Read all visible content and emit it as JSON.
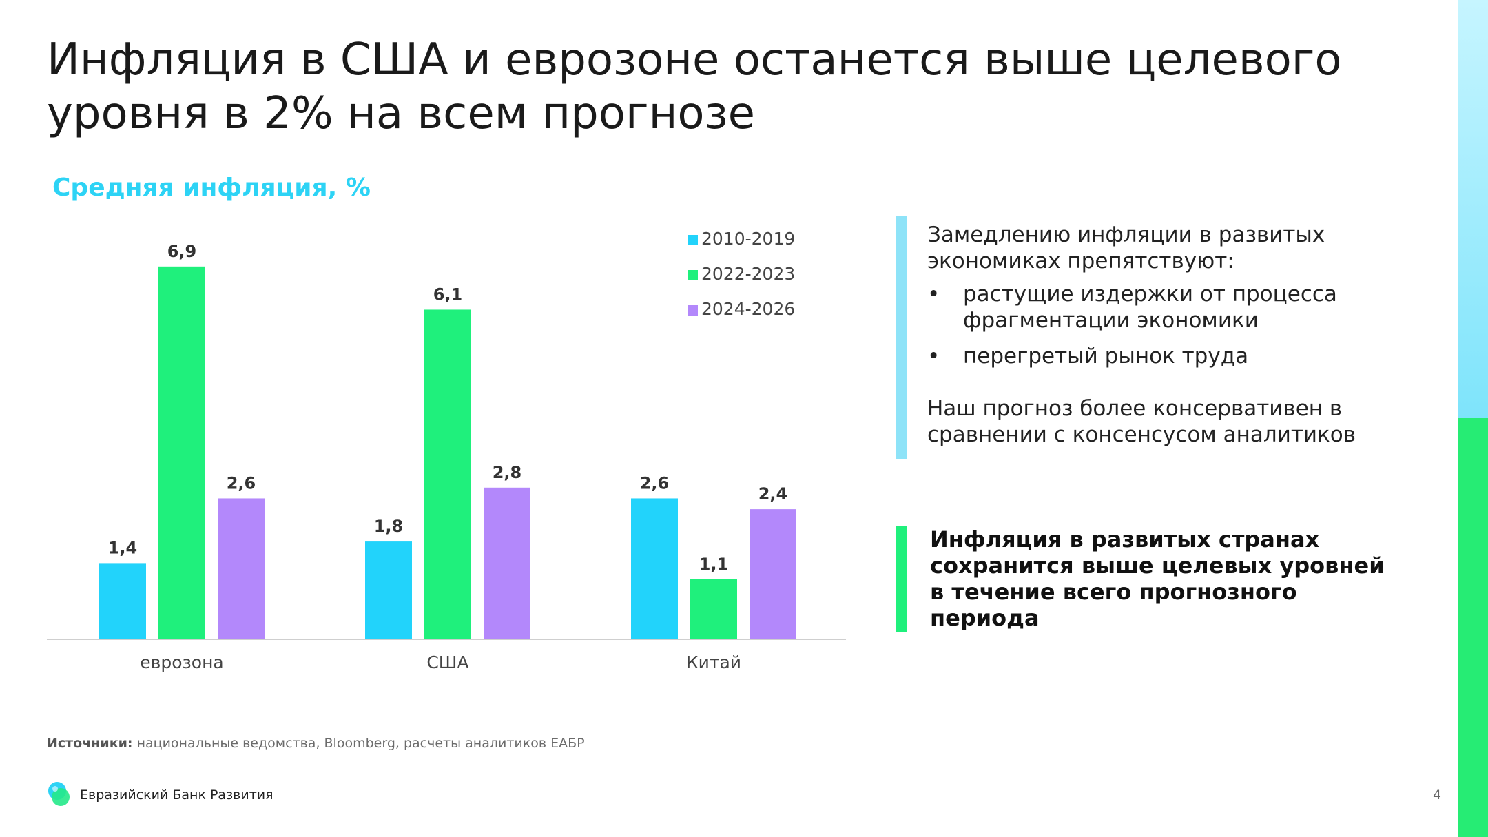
{
  "slide": {
    "title": "Инфляция в США и еврозоне останется выше целевого уровня в 2% на всем прогнозе",
    "page_number": "4"
  },
  "chart_data": {
    "type": "bar",
    "title": "Средняя инфляция, %",
    "categories": [
      "еврозона",
      "США",
      "Китай"
    ],
    "series": [
      {
        "name": "2010-2019",
        "color": "#22d3fb",
        "values": [
          1.4,
          1.8,
          2.6
        ],
        "labels": [
          "1,4",
          "1,8",
          "2,6"
        ]
      },
      {
        "name": "2022-2023",
        "color": "#1ff07c",
        "values": [
          6.9,
          6.1,
          1.1
        ],
        "labels": [
          "6,9",
          "6,1",
          "1,1"
        ]
      },
      {
        "name": "2024-2026",
        "color": "#b388fb",
        "values": [
          2.6,
          2.8,
          2.4
        ],
        "labels": [
          "2,6",
          "2,8",
          "2,4"
        ]
      }
    ],
    "ylim": [
      0,
      7.5
    ],
    "legend_position": "top-right",
    "grid": false
  },
  "side_panel": {
    "intro": "Замедлению инфляции в развитых экономиках препятствуют:",
    "bullet_marker": "•",
    "bullets": [
      "растущие издержки от процесса фрагментации экономики",
      "перегретый рынок труда"
    ],
    "note": "Наш прогноз более консервативен в сравнении с консенсусом аналитиков",
    "conclusion": "Инфляция в развитых странах сохранится выше целевых уровней в течение всего прогнозного периода"
  },
  "footer": {
    "source_label": "Источники:",
    "source_text": " национальные ведомства, Bloomberg, расчеты аналитиков ЕАБР",
    "logo_text": "Евразийский Банк Развития"
  }
}
